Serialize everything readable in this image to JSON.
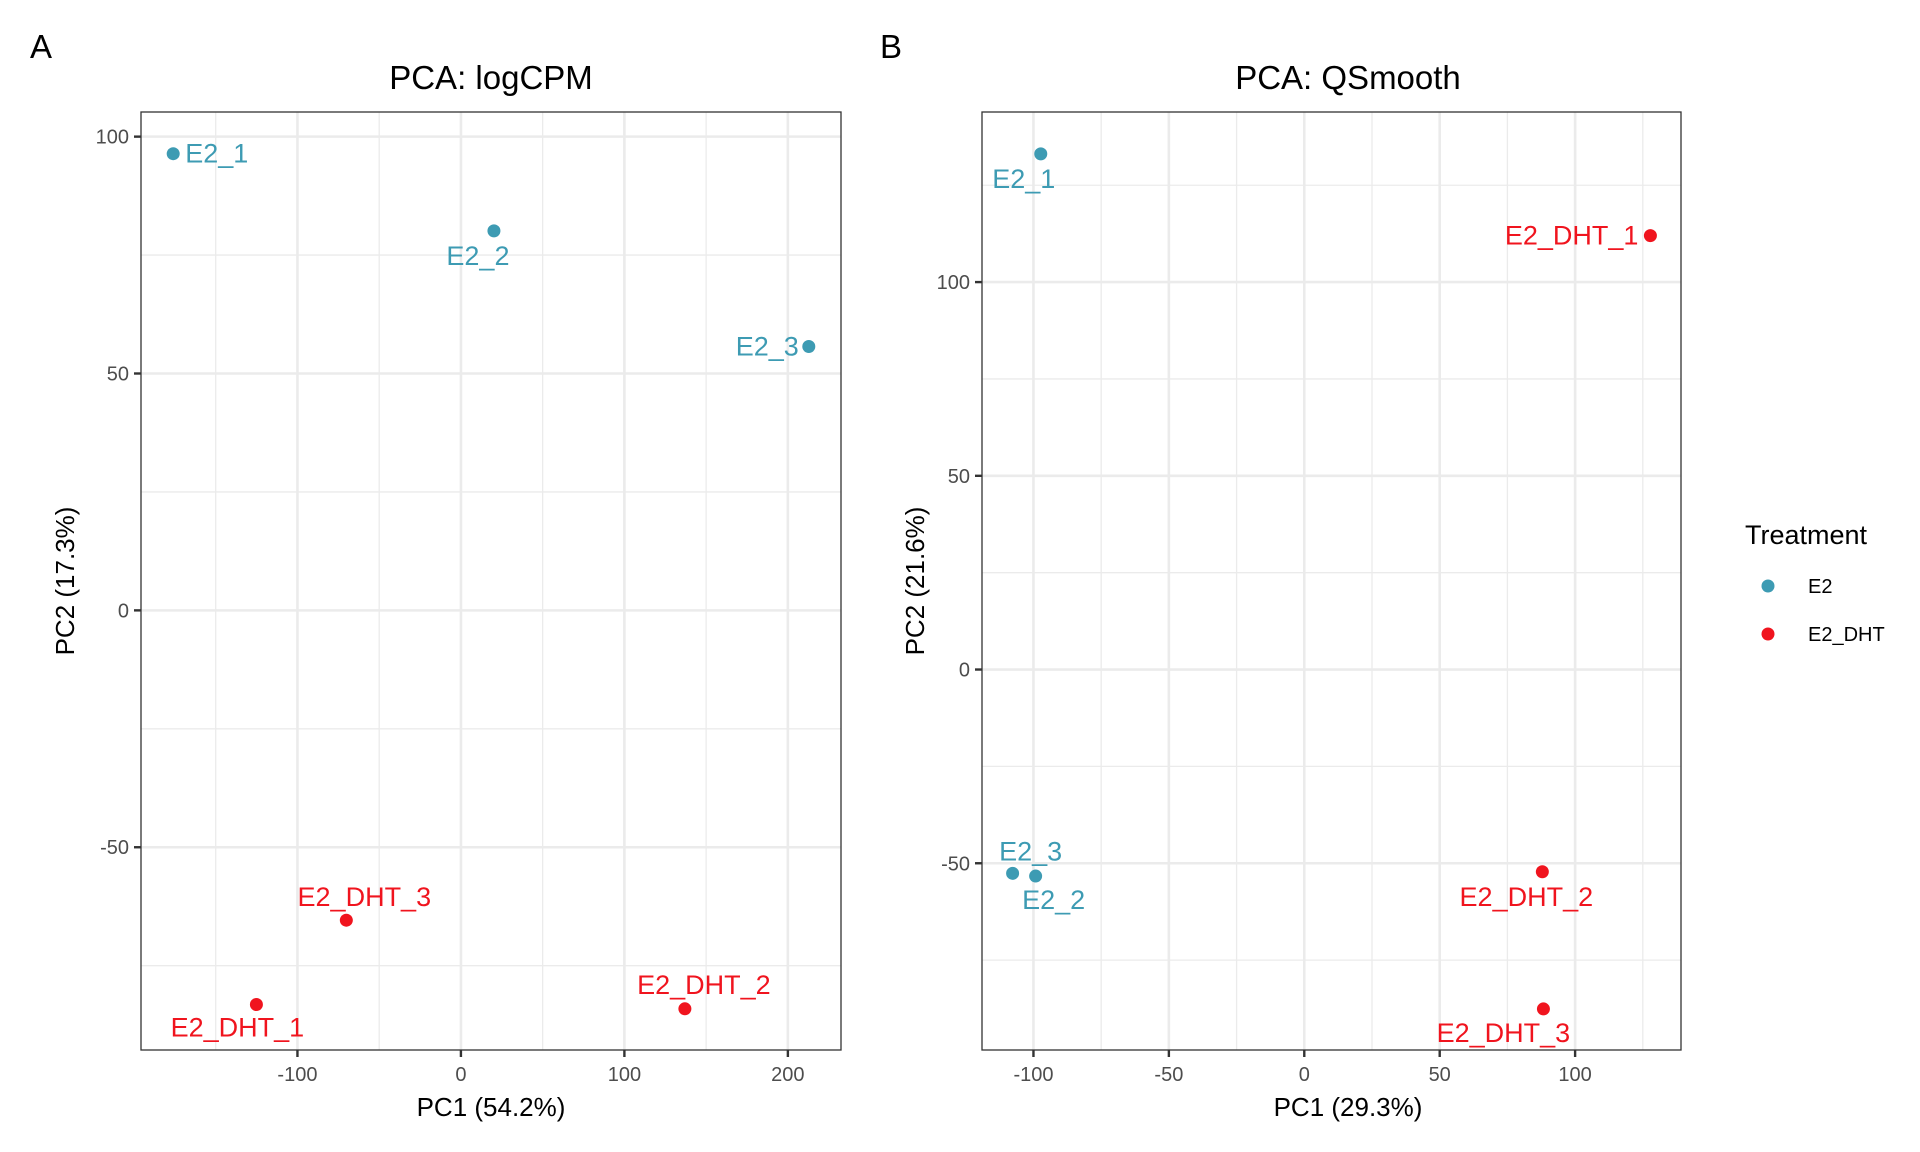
{
  "panels": [
    {
      "letter": "A"
    },
    {
      "letter": "B"
    }
  ],
  "legend": {
    "title": "Treatment",
    "items": [
      {
        "label": "E2",
        "color": "#3d9bb3"
      },
      {
        "label": "E2_DHT",
        "color": "#f0141e"
      }
    ]
  },
  "chart_data": [
    {
      "type": "scatter",
      "title": "PCA: logCPM",
      "xlabel": "PC1 (54.2%)",
      "ylabel": "PC2 (17.3%)",
      "xlim": [
        -195.7,
        232.5
      ],
      "ylim": [
        -92.8,
        105.2
      ],
      "xticks": [
        -100,
        0,
        100,
        200
      ],
      "yticks": [
        -50,
        0,
        50,
        100
      ],
      "xminor": [
        -150,
        -50,
        50,
        150
      ],
      "yminor": [
        -75,
        -25,
        25,
        75
      ],
      "grid": true,
      "legend": "right",
      "series": [
        {
          "name": "E2",
          "color": "#3d9bb3",
          "points": [
            {
              "label": "E2_1",
              "x": -176.0,
              "y": 96.4
            },
            {
              "label": "E2_2",
              "x": 20.2,
              "y": 80.1
            },
            {
              "label": "E2_3",
              "x": 212.8,
              "y": 55.7
            }
          ]
        },
        {
          "name": "E2_DHT",
          "color": "#f0141e",
          "points": [
            {
              "label": "E2_DHT_1",
              "x": -125.1,
              "y": -83.2
            },
            {
              "label": "E2_DHT_2",
              "x": 137.0,
              "y": -84.1
            },
            {
              "label": "E2_DHT_3",
              "x": -70.1,
              "y": -65.4
            }
          ]
        }
      ]
    },
    {
      "type": "scatter",
      "title": "PCA: QSmooth",
      "xlabel": "PC1 (29.3%)",
      "ylabel": "PC2 (21.6%)",
      "xlim": [
        -119.0,
        139.1
      ],
      "ylim": [
        -98.2,
        143.9
      ],
      "xticks": [
        -100,
        -50,
        0,
        50,
        100
      ],
      "yticks": [
        -50,
        0,
        50,
        100
      ],
      "xminor": [
        -75,
        -25,
        25,
        75,
        125
      ],
      "yminor": [
        -75,
        -25,
        25,
        75,
        125
      ],
      "grid": true,
      "legend": "right",
      "series": [
        {
          "name": "E2",
          "color": "#3d9bb3",
          "points": [
            {
              "label": "E2_1",
              "x": -97.3,
              "y": 133.1
            },
            {
              "label": "E2_2",
              "x": -99.2,
              "y": -53.3
            },
            {
              "label": "E2_3",
              "x": -107.7,
              "y": -52.6
            }
          ]
        },
        {
          "name": "E2_DHT",
          "color": "#f0141e",
          "points": [
            {
              "label": "E2_DHT_1",
              "x": 127.8,
              "y": 112.0
            },
            {
              "label": "E2_DHT_2",
              "x": 87.9,
              "y": -52.2
            },
            {
              "label": "E2_DHT_3",
              "x": 88.3,
              "y": -87.6
            }
          ]
        }
      ]
    }
  ]
}
